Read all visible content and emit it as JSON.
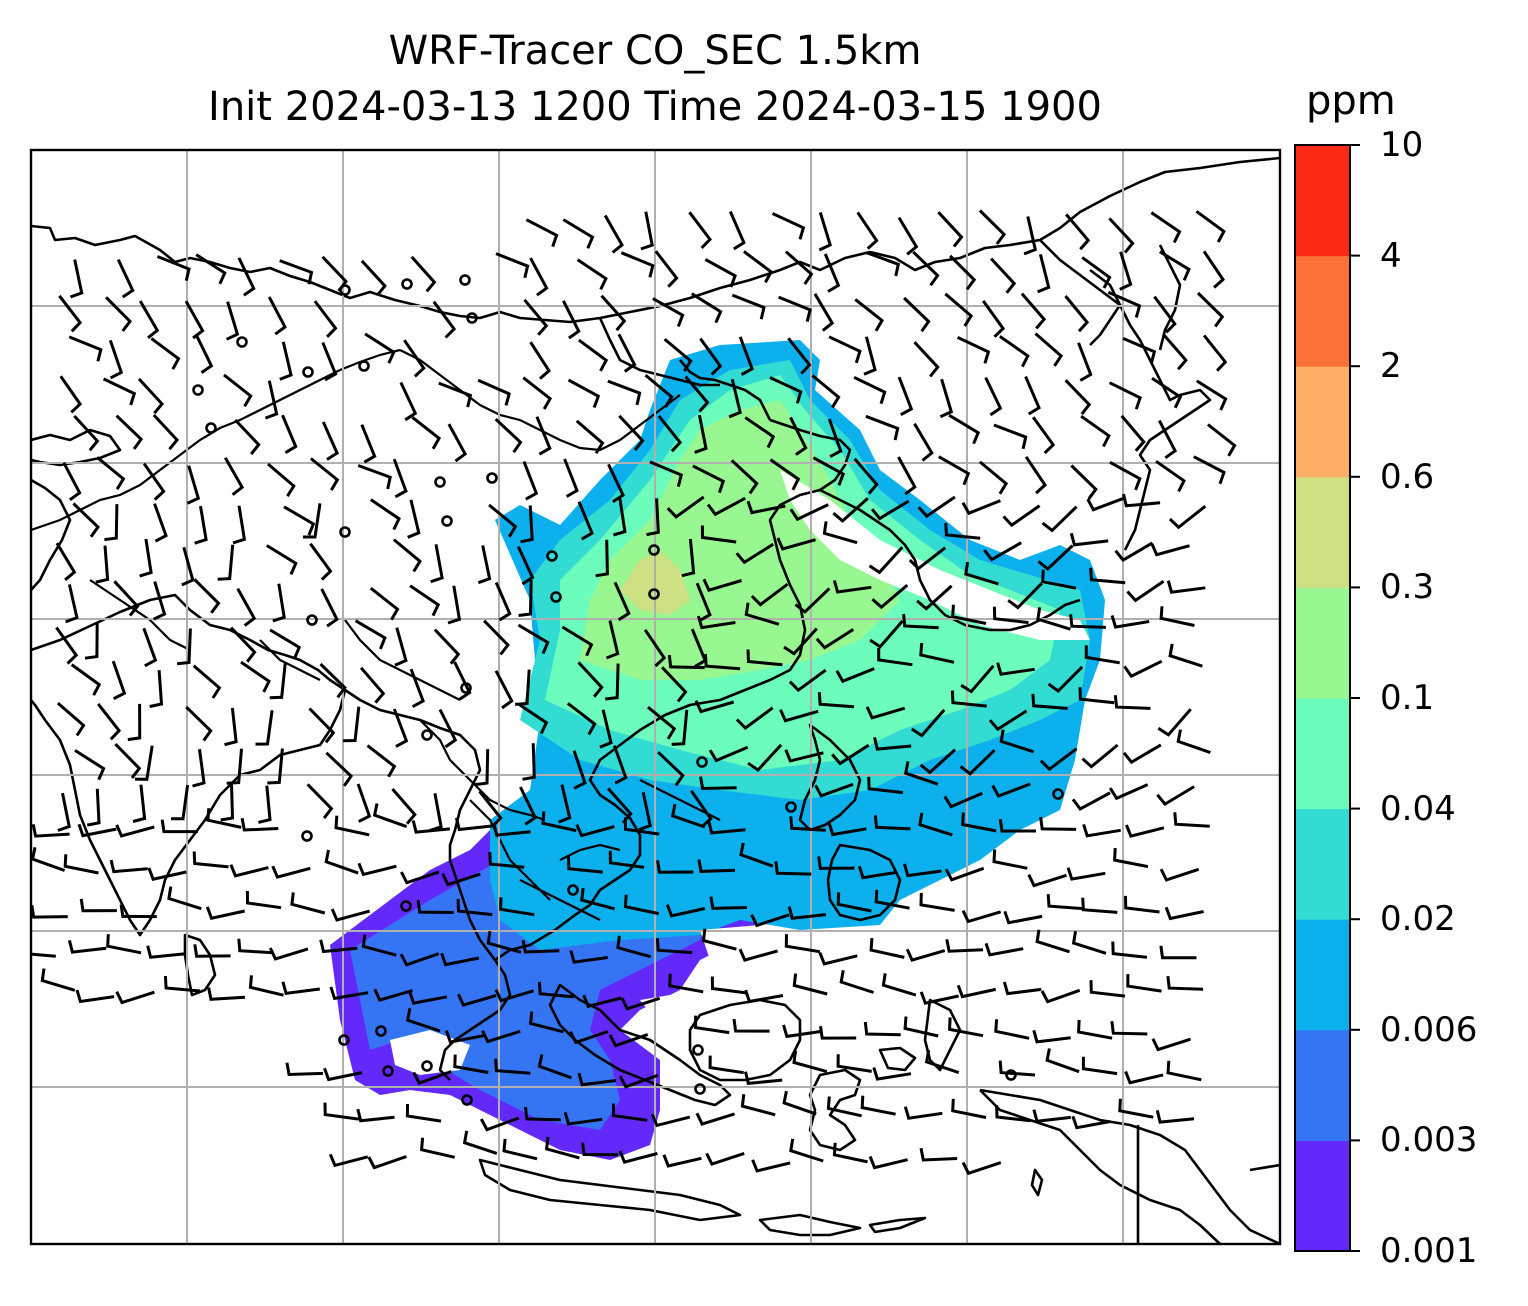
{
  "title": {
    "line1": "WRF-Tracer CO_SEC 1.5km",
    "line2": "Init 2024-03-13 1200 Time 2024-03-15 1900"
  },
  "colorbar": {
    "unit": "ppm",
    "levels": [
      "0.001",
      "0.003",
      "0.006",
      "0.02",
      "0.04",
      "0.1",
      "0.3",
      "0.6",
      "2",
      "4",
      "10"
    ],
    "colors": [
      "#6329fb",
      "#3575f4",
      "#0cb0ec",
      "#32dcd2",
      "#6cfcbc",
      "#98f790",
      "#cde084",
      "#fdb065",
      "#fb7239",
      "#fa2a16"
    ]
  },
  "map": {
    "gridlines": true,
    "wind_barbs": "black",
    "coastlines": "black"
  }
}
